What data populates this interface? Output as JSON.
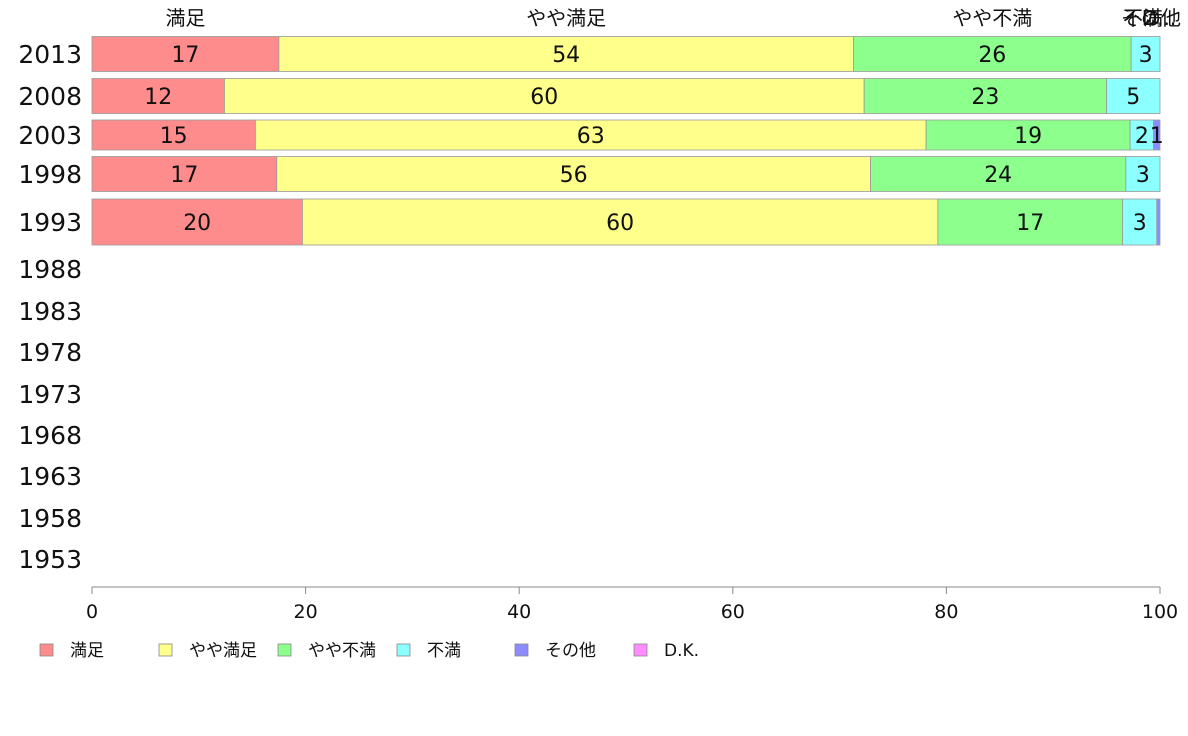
{
  "chart_data": {
    "type": "bar",
    "orientation": "horizontal",
    "stacked": true,
    "categories": [
      "2013",
      "2008",
      "2003",
      "1998",
      "1993",
      "1988",
      "1983",
      "1978",
      "1973",
      "1968",
      "1963",
      "1958",
      "1953"
    ],
    "series": [
      {
        "name": "満足",
        "color": "#ff8c8c",
        "values": [
          17.5,
          12.4,
          15.3,
          17.3,
          19.7,
          null,
          null,
          null,
          null,
          null,
          null,
          null,
          null
        ],
        "labels": [
          "17",
          "12",
          "15",
          "17",
          "20",
          "",
          "",
          "",
          "",
          "",
          "",
          "",
          ""
        ]
      },
      {
        "name": "やや満足",
        "color": "#ffff8c",
        "values": [
          53.8,
          59.9,
          62.8,
          55.6,
          59.5,
          null,
          null,
          null,
          null,
          null,
          null,
          null,
          null
        ],
        "labels": [
          "54",
          "60",
          "63",
          "56",
          "60",
          "",
          "",
          "",
          "",
          "",
          "",
          "",
          ""
        ]
      },
      {
        "name": "やや不満",
        "color": "#8cff8c",
        "values": [
          26.0,
          22.7,
          19.1,
          23.9,
          17.3,
          null,
          null,
          null,
          null,
          null,
          null,
          null,
          null
        ],
        "labels": [
          "26",
          "23",
          "19",
          "24",
          "17",
          "",
          "",
          "",
          "",
          "",
          "",
          "",
          ""
        ]
      },
      {
        "name": "不満",
        "color": "#8cffff",
        "values": [
          2.7,
          5.0,
          2.2,
          3.2,
          3.2,
          null,
          null,
          null,
          null,
          null,
          null,
          null,
          null
        ],
        "labels": [
          "3",
          "5",
          "2",
          "3",
          "3",
          "",
          "",
          "",
          "",
          "",
          "",
          "",
          ""
        ]
      },
      {
        "name": "その他",
        "color": "#8c8cff",
        "values": [
          0,
          0,
          0.6,
          0,
          0.3,
          null,
          null,
          null,
          null,
          null,
          null,
          null,
          null
        ],
        "labels": [
          "",
          "",
          "1",
          "",
          "",
          "",
          "",
          "",
          "",
          "",
          "",
          "",
          ""
        ]
      },
      {
        "name": "D.K.",
        "color": "#ff8cff",
        "values": [
          0,
          0,
          0,
          0,
          0,
          null,
          null,
          null,
          null,
          null,
          null,
          null,
          null
        ],
        "labels": [
          "",
          "",
          "",
          "",
          "",
          "",
          "",
          "",
          "",
          "",
          "",
          "",
          ""
        ]
      }
    ],
    "top_labels": [
      "満足",
      "やや満足",
      "やや不満",
      "不満",
      "その他",
      "D..."
    ],
    "xlim": [
      0,
      100
    ],
    "xticks": [
      0,
      20,
      40,
      60,
      80,
      100
    ],
    "title": "",
    "xlabel": "",
    "ylabel": "",
    "grid": false,
    "legend_position": "bottom-left"
  }
}
